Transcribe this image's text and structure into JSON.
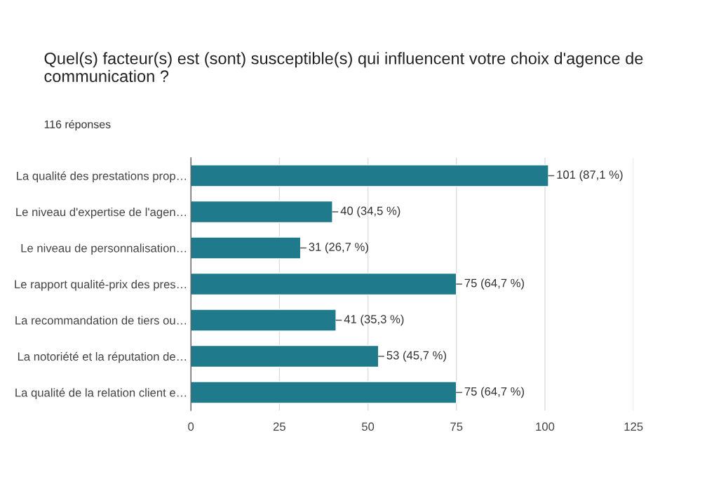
{
  "chart_data": {
    "type": "bar",
    "orientation": "horizontal",
    "title": "Quel(s) facteur(s) est (sont) susceptible(s) qui influencent votre choix d'agence de communication ?",
    "subtitle": "116 réponses",
    "categories": [
      "La qualité des prestations prop…",
      "Le niveau d'expertise de l'agen…",
      "Le niveau de personnalisation…",
      "Le rapport qualité-prix des pres…",
      "La recommandation de tiers ou…",
      "La notoriété et la réputation de…",
      "La qualité de la relation client e…"
    ],
    "values": [
      101,
      40,
      31,
      75,
      41,
      53,
      75
    ],
    "value_labels": [
      "101 (87,1 %)",
      "40 (34,5 %)",
      "31 (26,7 %)",
      "75 (64,7 %)",
      "41 (35,3 %)",
      "53 (45,7 %)",
      "75 (64,7 %)"
    ],
    "color": "#1f7a8c",
    "xlim": [
      0,
      125
    ],
    "xticks": [
      0,
      25,
      50,
      75,
      100,
      125
    ],
    "grid": "x",
    "legend": false
  }
}
